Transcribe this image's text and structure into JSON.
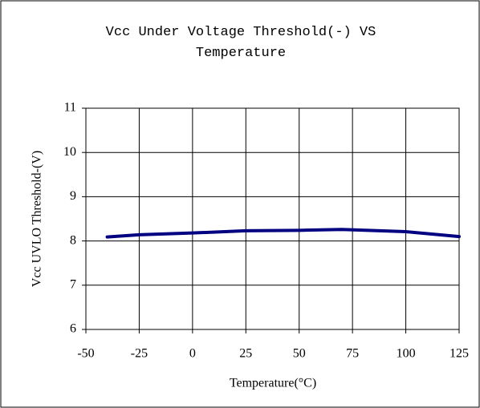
{
  "chart_data": {
    "type": "line",
    "title": "Vcc Under Voltage Threshold(-) VS Temperature",
    "x_label": "Temperature(°C)",
    "y_label": "Vcc UVLO Threshold-(V)",
    "x": [
      -40,
      -25,
      0,
      25,
      50,
      70,
      100,
      125
    ],
    "series": [
      {
        "name": "Vcc UVLO Threshold-",
        "color": "#000080",
        "values": [
          8.09,
          8.14,
          8.18,
          8.23,
          8.24,
          8.26,
          8.21,
          8.1
        ]
      }
    ],
    "xlim": [
      -50,
      125
    ],
    "xticks": [
      -50,
      -25,
      0,
      25,
      50,
      75,
      100,
      125
    ],
    "ylim": [
      6,
      11
    ],
    "yticks": [
      6,
      7,
      8,
      9,
      10,
      11
    ],
    "grid": true
  }
}
